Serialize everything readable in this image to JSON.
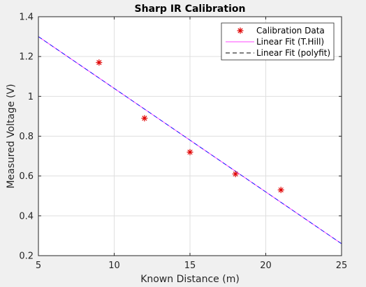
{
  "chart_data": {
    "type": "scatter",
    "title": "Sharp IR Calibration",
    "xlabel": "Known Distance (m)",
    "ylabel": "Measured Voltage (V)",
    "xlim": [
      5,
      25
    ],
    "ylim": [
      0.2,
      1.4
    ],
    "xticks": [
      "5",
      "10",
      "15",
      "20",
      "25"
    ],
    "yticks": [
      "0.2",
      "0.4",
      "0.6",
      "0.8",
      "1",
      "1.2",
      "1.4"
    ],
    "grid": true,
    "legend_position": "top-right",
    "series": [
      {
        "name": "Calibration Data",
        "kind": "markers",
        "marker": "asterisk",
        "color": "#e00000",
        "x": [
          9,
          12,
          15,
          18,
          21
        ],
        "y": [
          1.17,
          0.89,
          0.72,
          0.61,
          0.53
        ]
      },
      {
        "name": "Linear Fit (T.Hill)",
        "kind": "line",
        "style": "solid",
        "color": "#ff44ff",
        "x": [
          5,
          25
        ],
        "y": [
          1.3,
          0.26
        ]
      },
      {
        "name": "Linear Fit (polyfit)",
        "kind": "line",
        "style": "dashed",
        "color": "#1f1fff",
        "x": [
          5,
          25
        ],
        "y": [
          1.3,
          0.26
        ]
      }
    ]
  }
}
